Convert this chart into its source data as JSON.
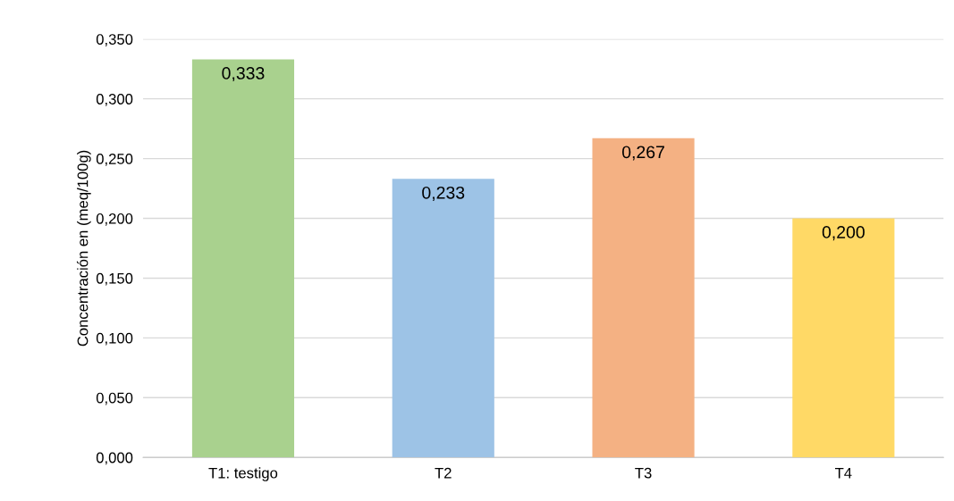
{
  "chart_data": {
    "type": "bar",
    "ylabel": "Concentración en (meq/100g)",
    "categories": [
      "T1: testigo",
      "T2",
      "T3",
      "T4"
    ],
    "values": [
      0.333,
      0.233,
      0.267,
      0.2
    ],
    "colors": [
      "#a9d18e",
      "#9dc3e6",
      "#f4b183",
      "#ffd966"
    ],
    "value_labels": [
      "0,333",
      "0,233",
      "0,267",
      "0,200"
    ],
    "ylim": [
      0,
      0.35
    ],
    "yticks": [
      {
        "value": 0,
        "label": "0,000"
      },
      {
        "value": 0.05,
        "label": "0,050"
      },
      {
        "value": 0.1,
        "label": "0,100"
      },
      {
        "value": 0.15,
        "label": "0,150"
      },
      {
        "value": 0.2,
        "label": "0,200"
      },
      {
        "value": 0.25,
        "label": "0,250"
      },
      {
        "value": 0.3,
        "label": "0,300"
      },
      {
        "value": 0.35,
        "label": "0,350"
      }
    ],
    "grid": "y",
    "legend": false
  }
}
